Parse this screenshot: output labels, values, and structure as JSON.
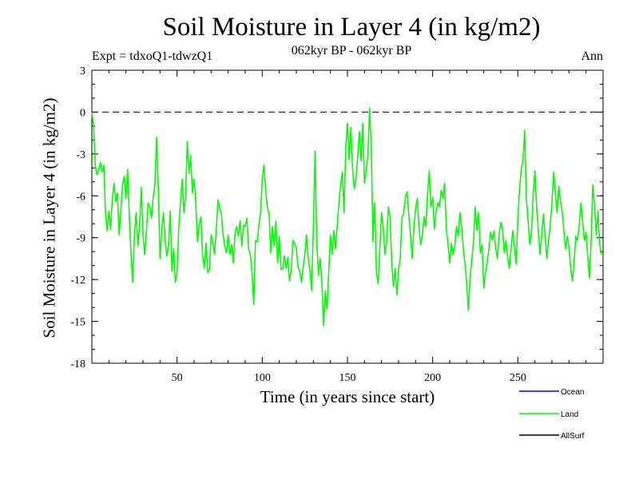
{
  "chart_data": {
    "type": "line",
    "title": "Soil Moisture in Layer 4 (in kg/m2)",
    "subtitle_left": "Expt = tdxoQ1-tdwzQ1",
    "subtitle_center": "062kyr BP - 062kyr BP",
    "subtitle_right": "Ann",
    "xlabel": "Time (in years since start)",
    "ylabel": "Soil Moisture in Layer 4 (in kg/m2)",
    "xlim": [
      0,
      300
    ],
    "ylim": [
      -18,
      3
    ],
    "x_ticks": [
      50,
      100,
      150,
      200,
      250
    ],
    "y_ticks": [
      3,
      0,
      -3,
      -6,
      -9,
      -12,
      -15,
      -18
    ],
    "reference_line": 0,
    "series": [
      {
        "name": "Ocean",
        "color": "#0000ff",
        "values": []
      },
      {
        "name": "Land",
        "color": "#00ff00",
        "x_start": 0,
        "x_step": 1,
        "values": [
          0,
          -1,
          -3.8,
          -4.5,
          -4.2,
          -3.6,
          -4.3,
          -3.8,
          -7.2,
          -8.5,
          -7.1,
          -8.4,
          -6.2,
          -5.1,
          -6.4,
          -5.8,
          -8.8,
          -7.1,
          -5.2,
          -4.6,
          -6.2,
          -4.1,
          -7.5,
          -10.3,
          -12.2,
          -8.8,
          -7.2,
          -9.6,
          -8.1,
          -5.4,
          -8.8,
          -10.2,
          -8.6,
          -6.5,
          -6.8,
          -7.6,
          -6.1,
          -5.2,
          -1.8,
          -5.5,
          -10.5,
          -8.5,
          -7.2,
          -9.2,
          -10.3,
          -9.6,
          -7.1,
          -11.4,
          -9.8,
          -12.2,
          -11.5,
          -8.3,
          -6.5,
          -4.8,
          -7.2,
          -6.1,
          -2.1,
          -4.4,
          -3.1,
          -5.8,
          -4.8,
          -6.5,
          -9.3,
          -8.1,
          -7.5,
          -10.3,
          -11.2,
          -9.4,
          -11.5,
          -11.3,
          -8.8,
          -9.3,
          -10.2,
          -8.5,
          -6.3,
          -6.8,
          -7.3,
          -8.8,
          -9.6,
          -10.1,
          -8.8,
          -10.2,
          -9.5,
          -10.8,
          -8.7,
          -8.2,
          -8.9,
          -7.8,
          -9.6,
          -8.1,
          -8.2,
          -7.6,
          -9.8,
          -10.2,
          -11.5,
          -13.8,
          -9.2,
          -9.3,
          -8.1,
          -7.2,
          -4.8,
          -3.8,
          -5.6,
          -6.8,
          -7.3,
          -10.1,
          -8.2,
          -9.6,
          -7.8,
          -10.8,
          -8.9,
          -11.3,
          -11.2,
          -10.3,
          -11.2,
          -10.4,
          -12.1,
          -11.3,
          -9.2,
          -9.4,
          -9.8,
          -11.1,
          -11.4,
          -12.2,
          -11.1,
          -10.2,
          -8.8,
          -10.5,
          -11.4,
          -12.8,
          -8.2,
          -2.8,
          -9.3,
          -11.7,
          -10.5,
          -12.3,
          -15.3,
          -12.8,
          -14.1,
          -11.5,
          -8.8,
          -10.2,
          -8.5,
          -9.8,
          -8.1,
          -6.5,
          -5.2,
          -4.3,
          -7.2,
          -2.5,
          -0.8,
          -3.4,
          -1.1,
          -4.1,
          -5.5,
          -4.8,
          -3.2,
          -1.4,
          -3.5,
          -0.8,
          -5.1,
          -4.2,
          -3.1,
          0.3,
          -2.7,
          -9.3,
          -6.5,
          -11.5,
          -12.3,
          -9.8,
          -7.2,
          -8.3,
          -10.2,
          -9.3,
          -6.8,
          -7.5,
          -10.8,
          -12.5,
          -11.2,
          -13.1,
          -11.3,
          -10.4,
          -7.6,
          -7.2,
          -6.1,
          -5.7,
          -7.4,
          -8.8,
          -10.5,
          -8.2,
          -6.9,
          -6.2,
          -8.3,
          -9.5,
          -8.8,
          -7.5,
          -8.2,
          -5.9,
          -4.2,
          -6.8,
          -6.1,
          -8.4,
          -7.1,
          -6.5,
          -6.8,
          -5.6,
          -6.2,
          -5.1,
          -8.3,
          -9.5,
          -10.8,
          -9.4,
          -10.2,
          -9.6,
          -8.2,
          -8.9,
          -7.2,
          -8.3,
          -9.8,
          -10.9,
          -12.3,
          -14.2,
          -11.8,
          -10.6,
          -9.2,
          -6.8,
          -8.5,
          -7.2,
          -10.1,
          -9.5,
          -12.6,
          -11.5,
          -10.8,
          -9.8,
          -8.6,
          -9.2,
          -8.5,
          -9.8,
          -10.5,
          -8.8,
          -7.9,
          -8.3,
          -10.1,
          -9.2,
          -10.4,
          -11.2,
          -9.8,
          -8.5,
          -9.7,
          -10.9,
          -7.6,
          -5.5,
          -4.1,
          -3.5,
          -1.3,
          -6.2,
          -7.8,
          -9.5,
          -8.7,
          -5.8,
          -4.2,
          -6.8,
          -8.5,
          -10.2,
          -8.8,
          -7.3,
          -8.9,
          -10.5,
          -9.2,
          -8.1,
          -6.5,
          -4.3,
          -5.8,
          -7.2,
          -5.3,
          -6.4,
          -7.1,
          -8.5,
          -9.8,
          -8.9,
          -9.7,
          -11.2,
          -12.1,
          -10.8,
          -8.9,
          -9.2,
          -8.1,
          -6.5,
          -7.8,
          -9.2,
          -8.6,
          -10.4,
          -11.9,
          -9.3,
          -5.2,
          -6.7,
          -8.8,
          -7.1,
          -9.5,
          -10.2
        ]
      },
      {
        "name": "AllSurf",
        "color": "#000000",
        "values": []
      }
    ],
    "legend": [
      "Ocean",
      "Land",
      "AllSurf"
    ],
    "legend_position": "bottom-right"
  }
}
